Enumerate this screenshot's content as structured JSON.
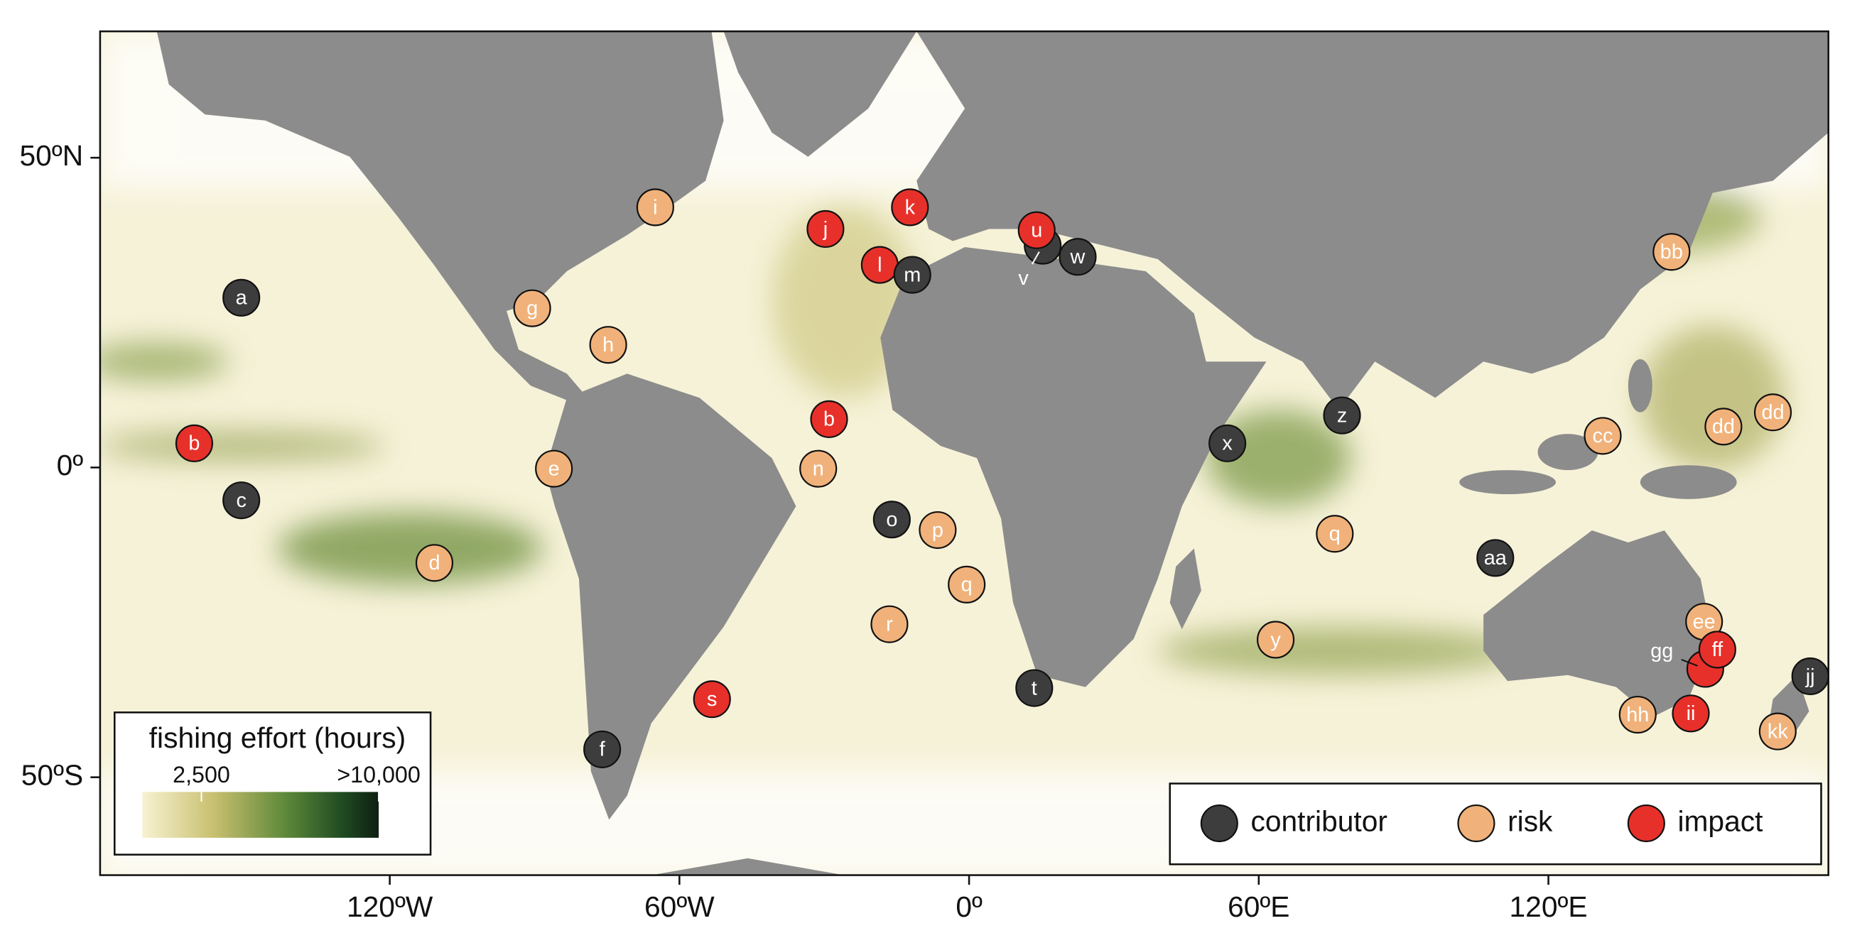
{
  "map": {
    "xlim": [
      -180,
      178
    ],
    "ylim": [
      -65.8,
      70.4
    ],
    "xticks": [
      {
        "value": -120,
        "label": "120ºW"
      },
      {
        "value": -60,
        "label": "60ºW"
      },
      {
        "value": 0,
        "label": "0º"
      },
      {
        "value": 60,
        "label": "60ºE"
      },
      {
        "value": 120,
        "label": "120ºE"
      }
    ],
    "yticks": [
      {
        "value": 50,
        "label": "50ºN"
      },
      {
        "value": 0,
        "label": "0º"
      },
      {
        "value": -50,
        "label": "50ºS"
      }
    ],
    "categories": [
      {
        "name": "contributor",
        "color": "#3d3d3d"
      },
      {
        "name": "risk",
        "color": "#f0b27a"
      },
      {
        "name": "impact",
        "color": "#e8302a"
      }
    ],
    "colorbar": {
      "title": "fishing effort (hours)",
      "range": [
        0,
        10000
      ],
      "ticks": [
        {
          "value": 2500,
          "label": "2,500"
        },
        {
          "value": 10000,
          "label": ">10,000"
        }
      ]
    },
    "markers": [
      {
        "label": "a",
        "category": "contributor",
        "lon": -150.75,
        "lat": 27.4
      },
      {
        "label": "b",
        "category": "impact",
        "lon": -160.5,
        "lat": 3.9
      },
      {
        "label": "c",
        "category": "contributor",
        "lon": -150.75,
        "lat": -5.3
      },
      {
        "label": "d",
        "category": "risk",
        "lon": -110.75,
        "lat": -15.4
      },
      {
        "label": "e",
        "category": "risk",
        "lon": -86,
        "lat": -0.2
      },
      {
        "label": "f",
        "category": "contributor",
        "lon": -76,
        "lat": -45.5
      },
      {
        "label": "g",
        "category": "risk",
        "lon": -90.5,
        "lat": 25.7
      },
      {
        "label": "h",
        "category": "risk",
        "lon": -74.75,
        "lat": 19.8
      },
      {
        "label": "i",
        "category": "risk",
        "lon": -65,
        "lat": 42
      },
      {
        "label": "j",
        "category": "impact",
        "lon": -29.75,
        "lat": 38.5
      },
      {
        "label": "k",
        "category": "impact",
        "lon": -12.25,
        "lat": 42
      },
      {
        "label": "l",
        "category": "impact",
        "lon": -18.5,
        "lat": 32.7
      },
      {
        "label": "m",
        "category": "contributor",
        "lon": -11.75,
        "lat": 31.1
      },
      {
        "label": "b",
        "category": "impact",
        "lon": -29,
        "lat": 7.8
      },
      {
        "label": "n",
        "category": "risk",
        "lon": -31.25,
        "lat": -0.2
      },
      {
        "label": "o",
        "category": "contributor",
        "lon": -16,
        "lat": -8.4
      },
      {
        "label": "p",
        "category": "risk",
        "lon": -6.5,
        "lat": -10.1
      },
      {
        "label": "q",
        "category": "risk",
        "lon": -0.5,
        "lat": -18.9
      },
      {
        "label": "r",
        "category": "risk",
        "lon": -16.5,
        "lat": -25.3
      },
      {
        "label": "s",
        "category": "impact",
        "lon": -53.25,
        "lat": -37.4
      },
      {
        "label": "t",
        "category": "contributor",
        "lon": 13.5,
        "lat": -35.6
      },
      {
        "label": "v",
        "category": "contributor",
        "lon": 15.25,
        "lat": 35.8,
        "label_outside": true
      },
      {
        "label": "u",
        "category": "impact",
        "lon": 14,
        "lat": 38.3
      },
      {
        "label": "w",
        "category": "contributor",
        "lon": 22.5,
        "lat": 34
      },
      {
        "label": "x",
        "category": "contributor",
        "lon": 53.5,
        "lat": 3.9
      },
      {
        "label": "y",
        "category": "risk",
        "lon": 63.5,
        "lat": -27.8
      },
      {
        "label": "z",
        "category": "contributor",
        "lon": 77.25,
        "lat": 8.4
      },
      {
        "label": "q",
        "category": "risk",
        "lon": 75.75,
        "lat": -10.7
      },
      {
        "label": "aa",
        "category": "contributor",
        "lon": 109,
        "lat": -14.6
      },
      {
        "label": "bb",
        "category": "risk",
        "lon": 145.5,
        "lat": 34.8
      },
      {
        "label": "cc",
        "category": "risk",
        "lon": 131.25,
        "lat": 5.1
      },
      {
        "label": "dd",
        "category": "risk",
        "lon": 156.25,
        "lat": 6.6
      },
      {
        "label": "dd",
        "category": "risk",
        "lon": 166.5,
        "lat": 8.9
      },
      {
        "label": "ee",
        "category": "risk",
        "lon": 152.25,
        "lat": -24.9
      },
      {
        "label": "gg",
        "category": "impact",
        "lon": 152.5,
        "lat": -32.5,
        "label_outside": true
      },
      {
        "label": "ff",
        "category": "impact",
        "lon": 155,
        "lat": -29.4
      },
      {
        "label": "hh",
        "category": "risk",
        "lon": 138.5,
        "lat": -39.9
      },
      {
        "label": "ii",
        "category": "impact",
        "lon": 149.5,
        "lat": -39.7
      },
      {
        "label": "jj",
        "category": "contributor",
        "lon": 174.25,
        "lat": -33.7
      },
      {
        "label": "kk",
        "category": "risk",
        "lon": 167.5,
        "lat": -42.6
      }
    ]
  }
}
